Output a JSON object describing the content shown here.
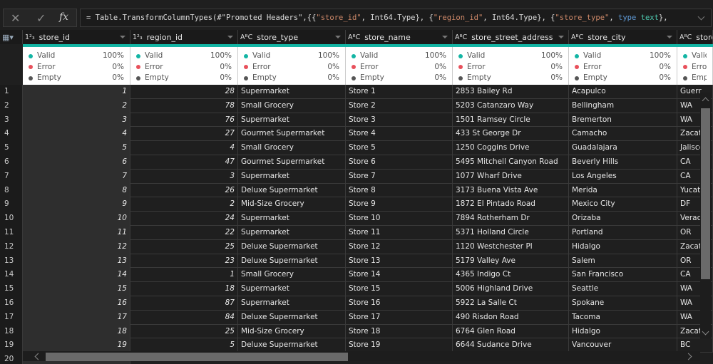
{
  "formula_bar": {
    "cancel_icon": "x-icon",
    "commit_icon": "check-icon",
    "fx_label": "fx",
    "formula_parts": [
      [
        "= Table.TransformColumnTypes(#\"Promoted Headers\",{{",
        ""
      ],
      [
        "\"store_id\"",
        "s"
      ],
      [
        ", Int64.Type}, {",
        ""
      ],
      [
        "\"region_id\"",
        "s"
      ],
      [
        ", Int64.Type}, {",
        ""
      ],
      [
        "\"store_type\"",
        "s"
      ],
      [
        ", ",
        ""
      ],
      [
        "type",
        "k"
      ],
      [
        " ",
        ""
      ],
      [
        "text",
        "t"
      ],
      [
        "},",
        ""
      ]
    ]
  },
  "colors": {
    "accent": "#13b5a4",
    "valid": "#13b5a4",
    "error": "#e8505b",
    "empty": "#555555"
  },
  "columns": [
    {
      "name": "store_id",
      "type": "1²₃",
      "numeric": true
    },
    {
      "name": "region_id",
      "type": "1²₃",
      "numeric": true
    },
    {
      "name": "store_type",
      "type": "AᴮC"
    },
    {
      "name": "store_name",
      "type": "AᴮC"
    },
    {
      "name": "store_street_address",
      "type": "AᴮC"
    },
    {
      "name": "store_city",
      "type": "AᴮC"
    },
    {
      "name": "store",
      "type": "AᴮC"
    }
  ],
  "quality": {
    "valid_label": "Valid",
    "error_label": "Error",
    "empty_label": "Empty",
    "valid": "100%",
    "error": "0%",
    "empty": "0%"
  },
  "rows": [
    [
      1,
      28,
      "Supermarket",
      "Store 1",
      "2853 Bailey Rd",
      "Acapulco",
      "Guerr"
    ],
    [
      2,
      78,
      "Small Grocery",
      "Store 2",
      "5203 Catanzaro Way",
      "Bellingham",
      "WA"
    ],
    [
      3,
      76,
      "Supermarket",
      "Store 3",
      "1501 Ramsey Circle",
      "Bremerton",
      "WA"
    ],
    [
      4,
      27,
      "Gourmet Supermarket",
      "Store 4",
      "433 St George Dr",
      "Camacho",
      "Zacate"
    ],
    [
      5,
      4,
      "Small Grocery",
      "Store 5",
      "1250 Coggins Drive",
      "Guadalajara",
      "Jalisco"
    ],
    [
      6,
      47,
      "Gourmet Supermarket",
      "Store 6",
      "5495 Mitchell Canyon Road",
      "Beverly Hills",
      "CA"
    ],
    [
      7,
      3,
      "Supermarket",
      "Store 7",
      "1077 Wharf Drive",
      "Los Angeles",
      "CA"
    ],
    [
      8,
      26,
      "Deluxe Supermarket",
      "Store 8",
      "3173 Buena Vista Ave",
      "Merida",
      "Yucata"
    ],
    [
      9,
      2,
      "Mid-Size Grocery",
      "Store 9",
      "1872 El Pintado Road",
      "Mexico City",
      "DF"
    ],
    [
      10,
      24,
      "Supermarket",
      "Store 10",
      "7894 Rotherham Dr",
      "Orizaba",
      "Veraci"
    ],
    [
      11,
      22,
      "Supermarket",
      "Store 11",
      "5371 Holland Circle",
      "Portland",
      "OR"
    ],
    [
      12,
      25,
      "Deluxe Supermarket",
      "Store 12",
      "1120 Westchester Pl",
      "Hidalgo",
      "Zacate"
    ],
    [
      13,
      23,
      "Deluxe Supermarket",
      "Store 13",
      "5179 Valley Ave",
      "Salem",
      "OR"
    ],
    [
      14,
      1,
      "Small Grocery",
      "Store 14",
      "4365 Indigo Ct",
      "San Francisco",
      "CA"
    ],
    [
      15,
      18,
      "Supermarket",
      "Store 15",
      "5006 Highland Drive",
      "Seattle",
      "WA"
    ],
    [
      16,
      87,
      "Supermarket",
      "Store 16",
      "5922 La Salle Ct",
      "Spokane",
      "WA"
    ],
    [
      17,
      84,
      "Deluxe Supermarket",
      "Store 17",
      "490 Risdon Road",
      "Tacoma",
      "WA"
    ],
    [
      18,
      25,
      "Mid-Size Grocery",
      "Store 18",
      "6764 Glen Road",
      "Hidalgo",
      "Zacate"
    ],
    [
      19,
      5,
      "Deluxe Supermarket",
      "Store 19",
      "6644 Sudance Drive",
      "Vancouver",
      "BC"
    ],
    [
      20
    ]
  ]
}
